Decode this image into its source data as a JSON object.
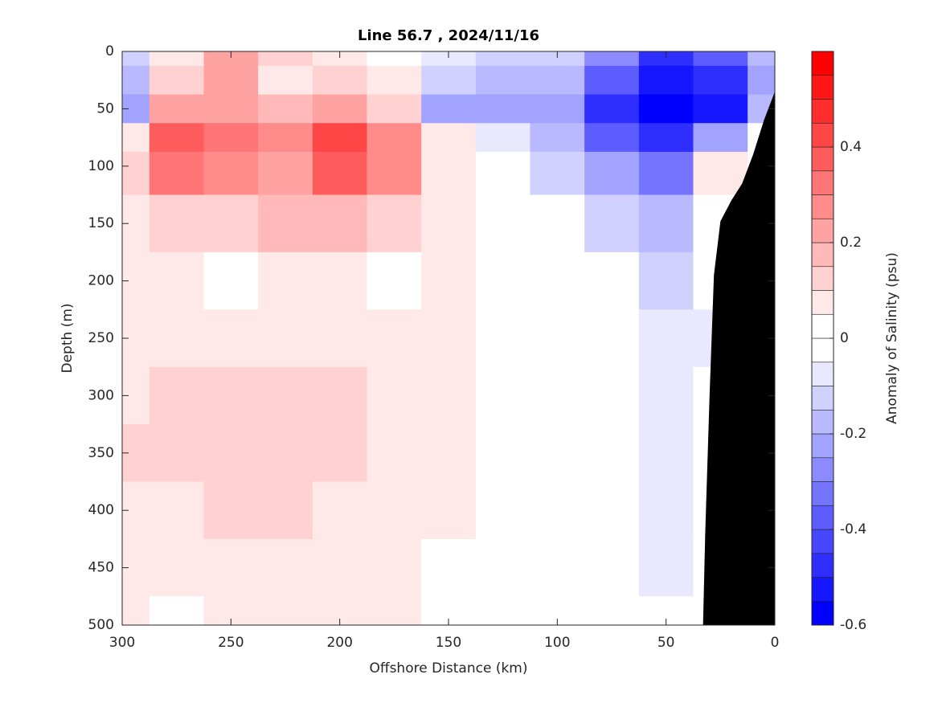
{
  "chart_data": {
    "type": "contourf",
    "title": "Line 56.7 , 2024/11/16",
    "xlabel": "Offshore Distance (km)",
    "ylabel": "Depth (m)",
    "colorbar_label": "Anomaly of Salinity (psu)",
    "x": [
      300,
      275,
      250,
      225,
      200,
      175,
      150,
      125,
      100,
      75,
      50,
      25,
      0
    ],
    "y": [
      0,
      25,
      50,
      75,
      100,
      150,
      200,
      250,
      300,
      350,
      400,
      450,
      500
    ],
    "z": [
      [
        -0.1,
        0.05,
        0.2,
        0.1,
        0.05,
        0,
        -0.05,
        -0.1,
        -0.1,
        -0.25,
        -0.45,
        -0.35,
        -0.15
      ],
      [
        -0.15,
        0.1,
        0.2,
        0.05,
        0.1,
        0.05,
        -0.1,
        -0.15,
        -0.15,
        -0.35,
        -0.5,
        -0.45,
        -0.2
      ],
      [
        -0.2,
        0.2,
        0.2,
        0.15,
        0.2,
        0.1,
        -0.2,
        -0.2,
        -0.2,
        -0.45,
        -0.55,
        -0.5,
        -0.15
      ],
      [
        0.05,
        0.35,
        0.3,
        0.25,
        0.4,
        0.25,
        0.05,
        -0.05,
        -0.15,
        -0.35,
        -0.45,
        -0.2,
        0
      ],
      [
        0.1,
        0.3,
        0.25,
        0.2,
        0.35,
        0.25,
        0.05,
        0,
        -0.1,
        -0.2,
        -0.3,
        0.05,
        0
      ],
      [
        0.05,
        0.1,
        0.1,
        0.15,
        0.15,
        0.1,
        0.05,
        0,
        0,
        -0.1,
        -0.15,
        0,
        0
      ],
      [
        0.05,
        0.05,
        0,
        0.05,
        0.05,
        0,
        0.05,
        0,
        0,
        0,
        -0.1,
        0,
        0
      ],
      [
        0.05,
        0.05,
        0.05,
        0.05,
        0.05,
        0.05,
        0.05,
        0,
        0,
        0,
        -0.05,
        -0.05,
        0
      ],
      [
        0.05,
        0.1,
        0.1,
        0.1,
        0.1,
        0.05,
        0.05,
        0,
        0,
        0,
        -0.05,
        0,
        0
      ],
      [
        0.1,
        0.1,
        0.1,
        0.1,
        0.1,
        0.05,
        0.05,
        0,
        0,
        0,
        -0.05,
        0,
        0
      ],
      [
        0.05,
        0.05,
        0.1,
        0.1,
        0.05,
        0.05,
        0.05,
        0,
        0,
        0,
        -0.05,
        0,
        0
      ],
      [
        0.05,
        0.05,
        0.05,
        0.05,
        0.05,
        0.05,
        0,
        0,
        0,
        0,
        -0.05,
        0,
        0
      ],
      [
        0.05,
        0,
        0.05,
        0.05,
        0.05,
        0.05,
        0,
        0,
        0,
        0,
        0,
        0,
        0
      ]
    ],
    "xlim": [
      300,
      0
    ],
    "xticks": [
      300,
      250,
      200,
      150,
      100,
      50,
      0
    ],
    "ylim": [
      0,
      500
    ],
    "yticks": [
      0,
      50,
      100,
      150,
      200,
      250,
      300,
      350,
      400,
      450,
      500
    ],
    "y_reversed": true,
    "clim": [
      -0.6,
      0.6
    ],
    "nlevels": 24,
    "colorbar_ticks": [
      -0.6,
      -0.4,
      -0.2,
      0,
      0.2,
      0.4
    ],
    "colormap": {
      "low": "#0000ff",
      "mid": "#ffffff",
      "high": "#ff0000"
    },
    "bathymetry": {
      "x": [
        0,
        5,
        10,
        15,
        20,
        25,
        28,
        30,
        32,
        33,
        0
      ],
      "depth": [
        35,
        60,
        90,
        115,
        130,
        148,
        195,
        300,
        420,
        500,
        500
      ],
      "color": "#000000"
    }
  }
}
